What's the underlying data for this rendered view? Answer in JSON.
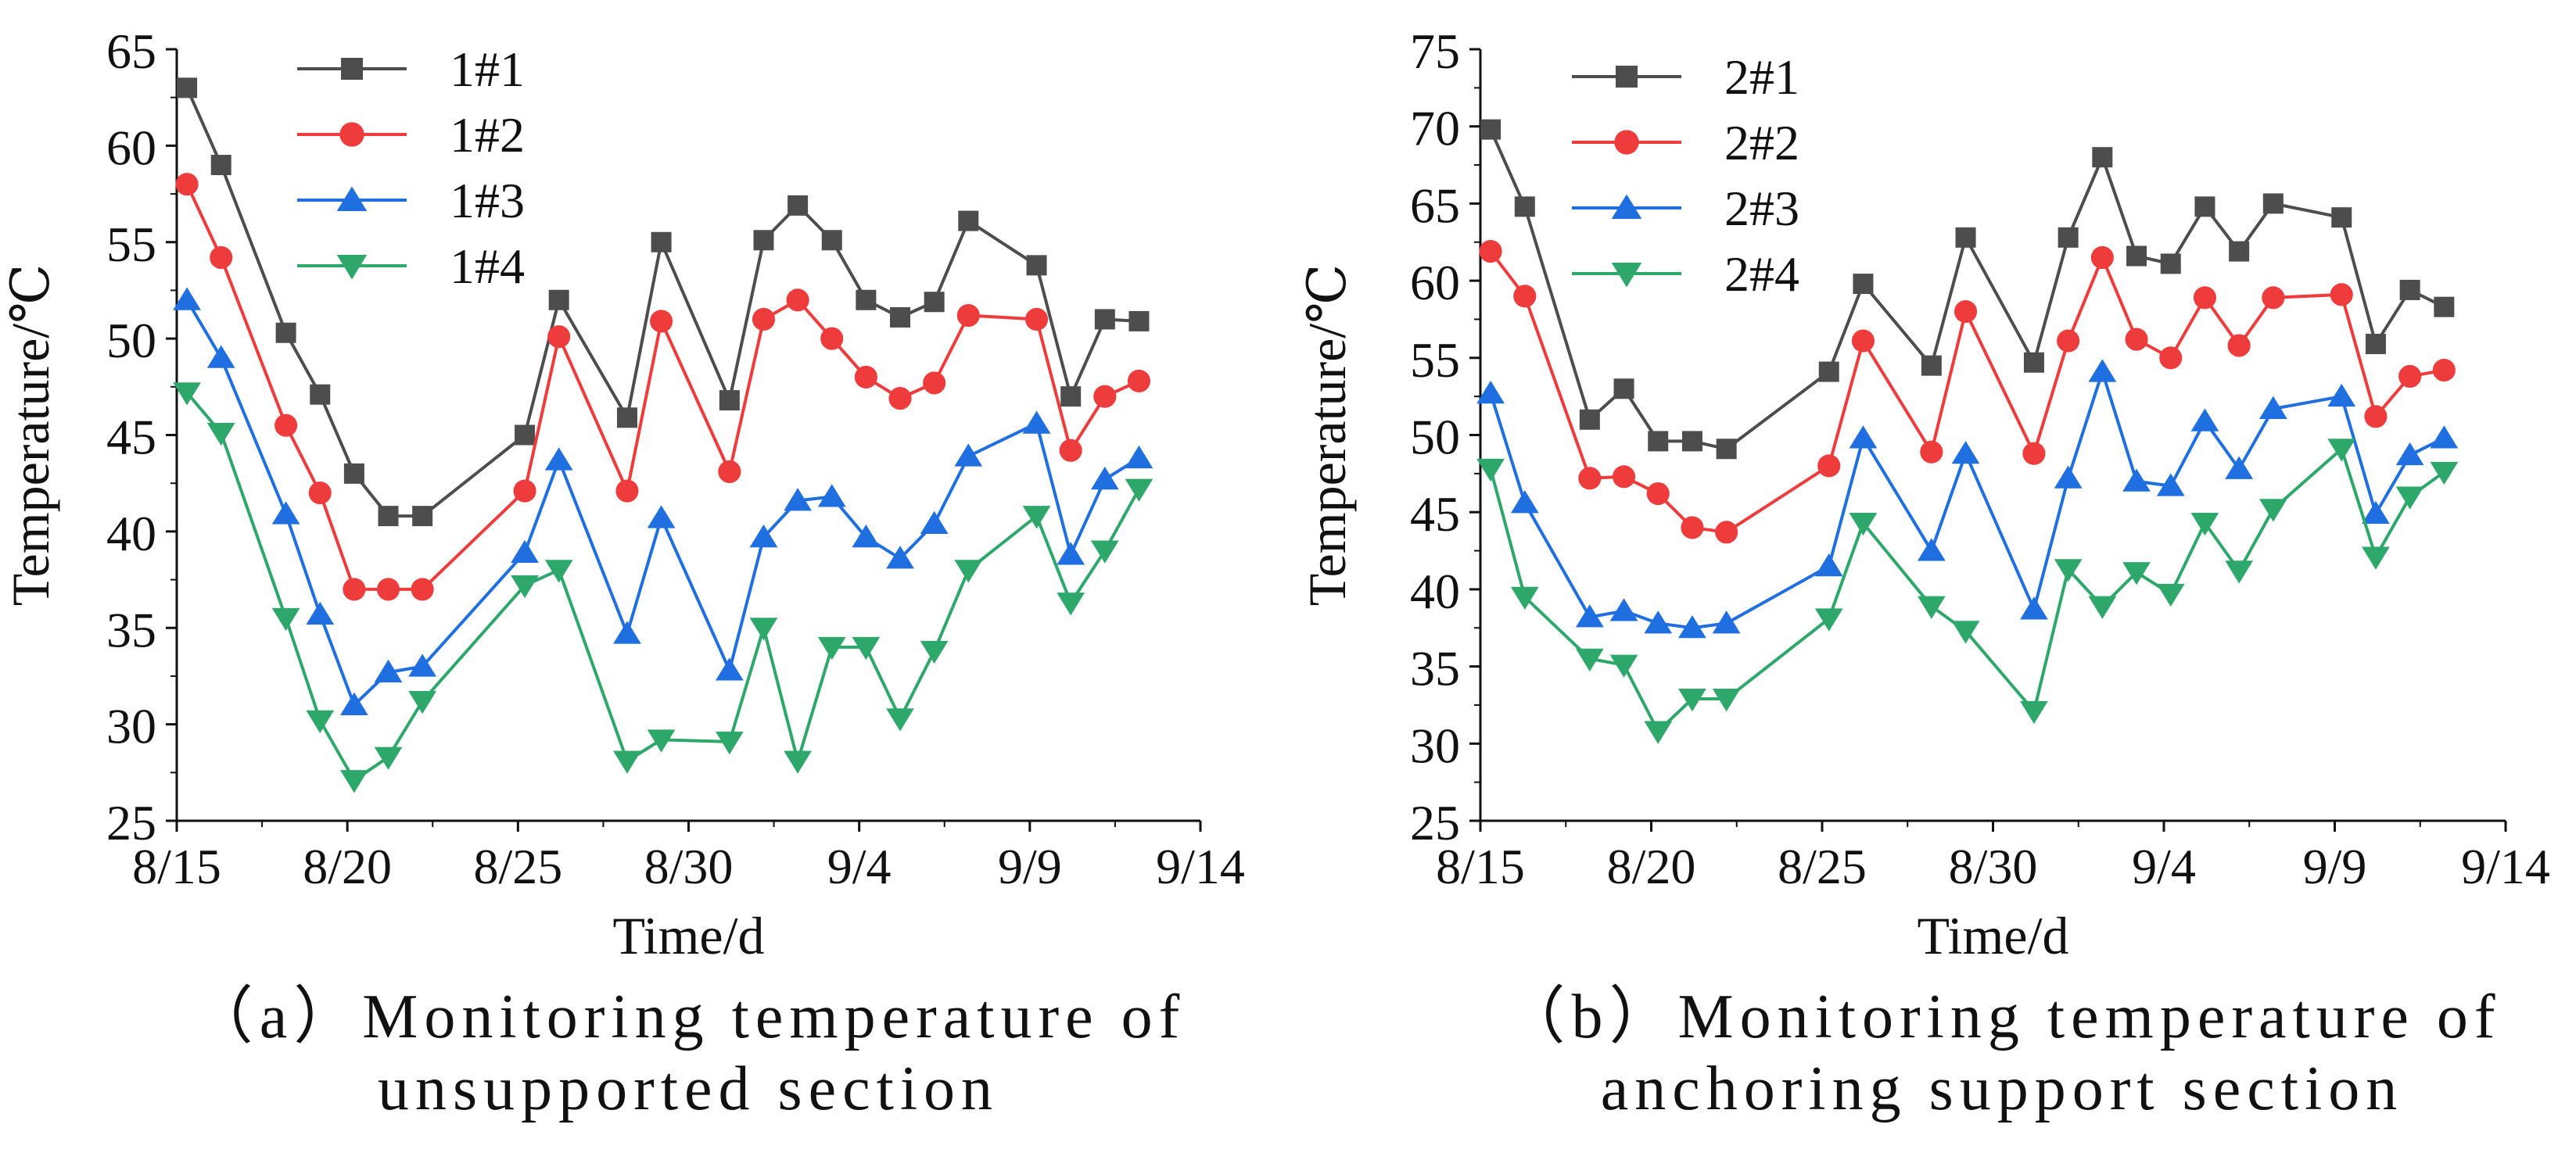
{
  "chart_data": [
    {
      "panel": "a",
      "type": "line",
      "caption_line1": "（a）Monitoring temperature of",
      "caption_line2": "unsupported section",
      "xlabel": "Time/d",
      "ylabel": "Temperature/℃",
      "x_tick_labels": [
        "8/15",
        "8/20",
        "8/25",
        "8/30",
        "9/4",
        "9/9",
        "9/14"
      ],
      "x_tick_days": [
        0,
        5,
        10,
        15,
        20,
        25,
        30
      ],
      "xlim": [
        0,
        30
      ],
      "ylim": [
        25,
        65
      ],
      "y_ticks": [
        25,
        30,
        35,
        40,
        45,
        50,
        55,
        60,
        65
      ],
      "legend_position": "top-left",
      "x": [
        0.3,
        1.3,
        3.2,
        4.2,
        5.2,
        6.2,
        7.2,
        10.2,
        11.2,
        13.2,
        14.2,
        16.2,
        17.2,
        18.2,
        19.2,
        20.2,
        21.2,
        22.2,
        23.2,
        25.2,
        26.2,
        27.2,
        28.2
      ],
      "series": [
        {
          "name": "1#1",
          "color": "#4d4d4d",
          "marker": "square",
          "values": [
            63,
            59,
            50.3,
            47.1,
            43,
            40.8,
            40.8,
            45,
            52,
            45.9,
            55,
            46.8,
            55.1,
            56.9,
            55.1,
            52,
            51.1,
            51.9,
            56.1,
            53.8,
            47,
            51,
            50.9
          ]
        },
        {
          "name": "1#2",
          "color": "#ee3b3b",
          "marker": "circle",
          "values": [
            58,
            54.2,
            45.5,
            42,
            37,
            37,
            37,
            42.1,
            50.1,
            42.1,
            50.9,
            43.1,
            51,
            52,
            50,
            48,
            46.9,
            47.7,
            51.2,
            51,
            44.2,
            47,
            47.8
          ]
        },
        {
          "name": "1#3",
          "color": "#1f6fe0",
          "marker": "triangle-up",
          "values": [
            52,
            49,
            40.9,
            35.7,
            31,
            32.7,
            33,
            38.9,
            43.7,
            34.7,
            40.7,
            32.8,
            39.7,
            41.6,
            41.8,
            39.7,
            38.6,
            40.4,
            43.9,
            45.6,
            38.8,
            42.7,
            43.8
          ]
        },
        {
          "name": "1#4",
          "color": "#2ea86a",
          "marker": "triangle-down",
          "values": [
            47.2,
            45.1,
            35.5,
            30.2,
            27.1,
            28.3,
            31.2,
            37.2,
            38,
            28.1,
            29.2,
            29.1,
            35,
            28.1,
            34,
            34,
            30.3,
            33.8,
            38,
            40.8,
            36.3,
            39,
            42.2
          ]
        }
      ]
    },
    {
      "panel": "b",
      "type": "line",
      "caption_line1": "（b）Monitoring temperature of",
      "caption_line2": "anchoring support section",
      "xlabel": "Time/d",
      "ylabel": "Temperature/℃",
      "x_tick_labels": [
        "8/15",
        "8/20",
        "8/25",
        "8/30",
        "9/4",
        "9/9",
        "9/14"
      ],
      "x_tick_days": [
        0,
        5,
        10,
        15,
        20,
        25,
        30
      ],
      "xlim": [
        0,
        30
      ],
      "ylim": [
        25,
        75
      ],
      "y_ticks": [
        25,
        30,
        35,
        40,
        45,
        50,
        55,
        60,
        65,
        70,
        75
      ],
      "legend_position": "top-left",
      "x": [
        0.3,
        1.3,
        3.2,
        4.2,
        5.2,
        6.2,
        7.2,
        10.2,
        11.2,
        13.2,
        14.2,
        16.2,
        17.2,
        18.2,
        19.2,
        20.2,
        21.2,
        22.2,
        23.2,
        25.2,
        26.2,
        27.2,
        28.2
      ],
      "series": [
        {
          "name": "2#1",
          "color": "#4d4d4d",
          "marker": "square",
          "values": [
            69.8,
            64.8,
            51,
            53,
            49.6,
            49.6,
            49.1,
            54.1,
            59.8,
            54.5,
            62.8,
            54.7,
            62.8,
            68,
            61.6,
            61.1,
            64.8,
            61.9,
            65,
            64.1,
            55.9,
            59.4,
            58.3
          ]
        },
        {
          "name": "2#2",
          "color": "#ee3b3b",
          "marker": "circle",
          "values": [
            61.9,
            59,
            47.2,
            47.3,
            46.2,
            44,
            43.7,
            48,
            56.1,
            48.9,
            58,
            48.8,
            56.1,
            61.5,
            56.2,
            55,
            58.9,
            55.8,
            58.9,
            59.1,
            51.2,
            53.8,
            54.2
          ]
        },
        {
          "name": "2#3",
          "color": "#1f6fe0",
          "marker": "triangle-up",
          "values": [
            52.7,
            45.6,
            38.2,
            38.6,
            37.8,
            37.5,
            37.8,
            41.5,
            49.8,
            42.5,
            48.8,
            38.7,
            47.2,
            54.1,
            47,
            46.7,
            50.9,
            47.8,
            51.7,
            52.5,
            44.9,
            48.7,
            49.8
          ]
        },
        {
          "name": "2#4",
          "color": "#2ea86a",
          "marker": "triangle-down",
          "values": [
            47.8,
            39.5,
            35.5,
            35.1,
            30.8,
            32.9,
            32.9,
            38.1,
            44.3,
            38.9,
            37.3,
            32.1,
            41.3,
            38.9,
            41.1,
            39.7,
            44.3,
            41.2,
            45.2,
            49.1,
            42.1,
            46,
            47.6
          ]
        }
      ]
    }
  ]
}
